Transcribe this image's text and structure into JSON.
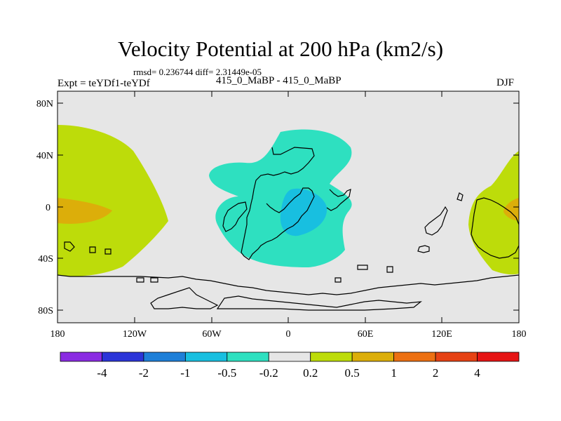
{
  "chart_data": {
    "type": "map-contour",
    "title": "Velocity Potential at 200 hPa (km2/s)",
    "stats_line": "rmsd= 0.236744 diff= 2.31449e-05",
    "left_label": "Expt = teYDf1-teYDf",
    "center_label": "415_0_MaBP - 415_0_MaBP",
    "right_label": "DJF",
    "x_ticks": [
      "180",
      "120W",
      "60W",
      "0",
      "60E",
      "120E",
      "180"
    ],
    "x_values": [
      -180,
      -120,
      -60,
      0,
      60,
      120,
      180
    ],
    "y_ticks": [
      "80N",
      "40N",
      "0",
      "40S",
      "80S"
    ],
    "y_values": [
      80,
      40,
      0,
      -40,
      -80
    ],
    "xlim": [
      -180,
      180
    ],
    "ylim": [
      -90,
      90
    ],
    "colorbar": {
      "labels": [
        "-4",
        "-2",
        "-1",
        "-0.5",
        "-0.2",
        "0.2",
        "0.5",
        "1",
        "2",
        "4"
      ],
      "colors": [
        "#8a2be2",
        "#2b35d8",
        "#1e7fd8",
        "#18bfe0",
        "#2ee0c0",
        "#e6e6e6",
        "#bddc0a",
        "#dcae0a",
        "#ec7012",
        "#e64214",
        "#e61414"
      ]
    },
    "regions": [
      {
        "level": "0.2 to 0.5",
        "area": "West Pacific / 180 region"
      },
      {
        "level": "0.5 to 1",
        "area": "near 180 equator"
      },
      {
        "level": "-0.5 to -0.2",
        "area": "Africa / Atlantic"
      },
      {
        "level": "-1 to -0.5",
        "area": "equatorial Africa"
      },
      {
        "level": "0.2 to 0.5",
        "area": "Maritime Continent"
      },
      {
        "level": "0.5 to 1",
        "area": "east of 150E equator"
      }
    ],
    "background_color": "#e6e6e6"
  }
}
